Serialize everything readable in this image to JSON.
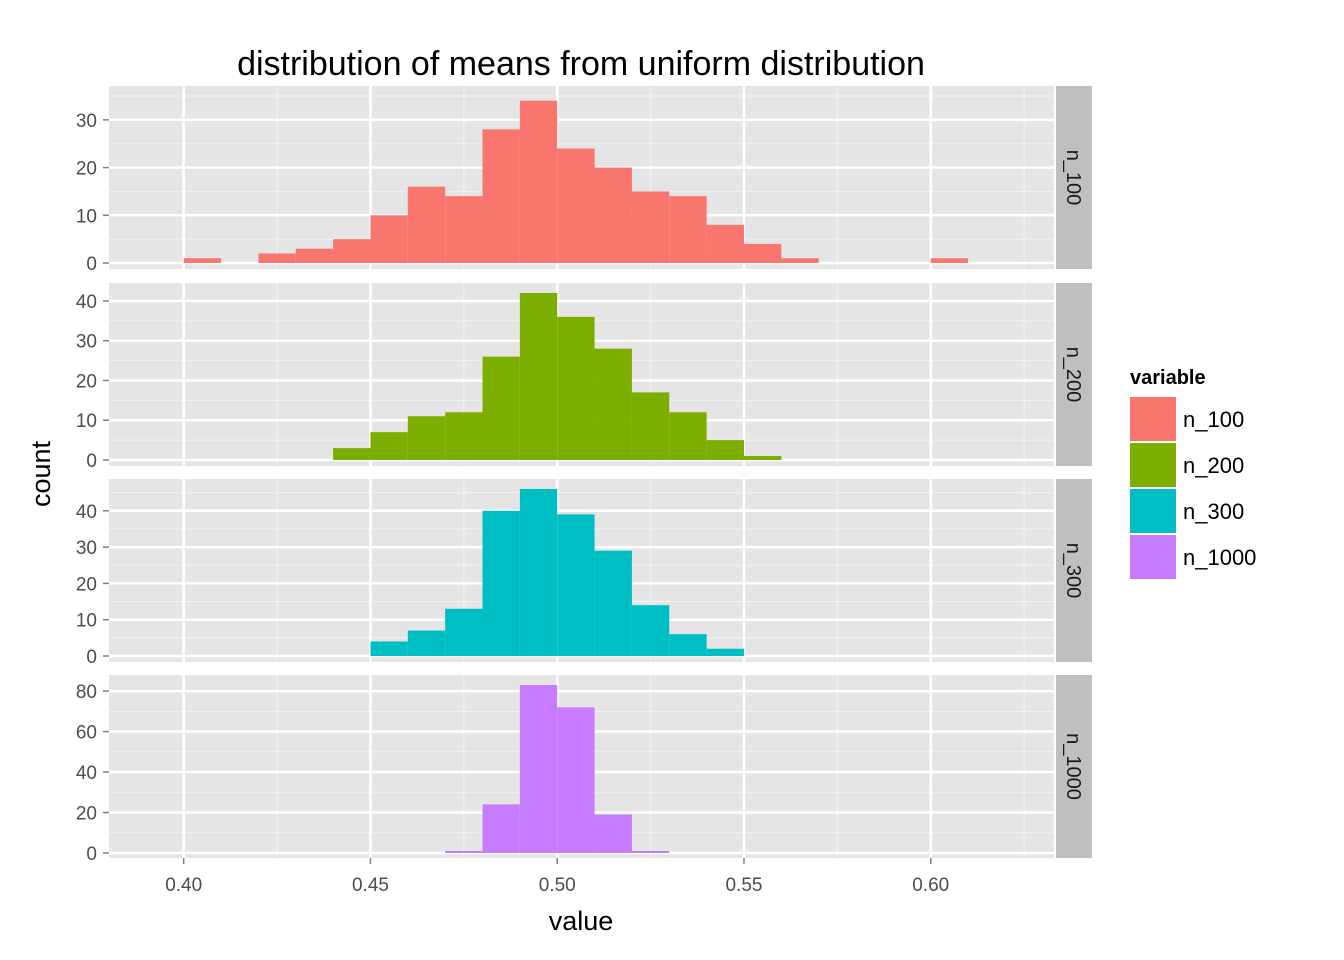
{
  "chart_data": {
    "type": "bar",
    "subtype": "histogram-faceted",
    "title": "distribution of means from uniform distribution",
    "xlabel": "value",
    "ylabel": "count",
    "xlim": [
      0.38,
      0.633
    ],
    "x_ticks": [
      "0.40",
      "0.45",
      "0.50",
      "0.55",
      "0.60"
    ],
    "x_tick_values": [
      0.4,
      0.45,
      0.5,
      0.55,
      0.6
    ],
    "bin_width": 0.01,
    "grid": true,
    "legend": {
      "title": "variable",
      "placement": "right",
      "items": [
        {
          "label": "n_100",
          "color": "#F8766D"
        },
        {
          "label": "n_200",
          "color": "#7CAE00"
        },
        {
          "label": "n_300",
          "color": "#00BFC4"
        },
        {
          "label": "n_1000",
          "color": "#C77CFF"
        }
      ]
    },
    "panels": [
      {
        "name": "n_100",
        "color": "#F8766D",
        "ylim": [
          0,
          35
        ],
        "y_ticks": [
          0,
          10,
          20,
          30
        ],
        "bins": [
          {
            "x0": 0.4,
            "count": 1
          },
          {
            "x0": 0.41,
            "count": 0
          },
          {
            "x0": 0.42,
            "count": 2
          },
          {
            "x0": 0.43,
            "count": 3
          },
          {
            "x0": 0.44,
            "count": 5
          },
          {
            "x0": 0.45,
            "count": 10
          },
          {
            "x0": 0.46,
            "count": 16
          },
          {
            "x0": 0.47,
            "count": 14
          },
          {
            "x0": 0.48,
            "count": 28
          },
          {
            "x0": 0.49,
            "count": 34
          },
          {
            "x0": 0.5,
            "count": 24
          },
          {
            "x0": 0.51,
            "count": 20
          },
          {
            "x0": 0.52,
            "count": 15
          },
          {
            "x0": 0.53,
            "count": 14
          },
          {
            "x0": 0.54,
            "count": 8
          },
          {
            "x0": 0.55,
            "count": 4
          },
          {
            "x0": 0.56,
            "count": 1
          },
          {
            "x0": 0.57,
            "count": 0
          },
          {
            "x0": 0.58,
            "count": 0
          },
          {
            "x0": 0.59,
            "count": 0
          },
          {
            "x0": 0.6,
            "count": 1
          }
        ]
      },
      {
        "name": "n_200",
        "color": "#7CAE00",
        "ylim": [
          0,
          42
        ],
        "y_ticks": [
          0,
          10,
          20,
          30,
          40
        ],
        "bins": [
          {
            "x0": 0.44,
            "count": 3
          },
          {
            "x0": 0.45,
            "count": 7
          },
          {
            "x0": 0.46,
            "count": 11
          },
          {
            "x0": 0.47,
            "count": 12
          },
          {
            "x0": 0.48,
            "count": 26
          },
          {
            "x0": 0.49,
            "count": 42
          },
          {
            "x0": 0.5,
            "count": 36
          },
          {
            "x0": 0.51,
            "count": 28
          },
          {
            "x0": 0.52,
            "count": 17
          },
          {
            "x0": 0.53,
            "count": 12
          },
          {
            "x0": 0.54,
            "count": 5
          },
          {
            "x0": 0.55,
            "count": 1
          }
        ]
      },
      {
        "name": "n_300",
        "color": "#00BFC4",
        "ylim": [
          0,
          46
        ],
        "y_ticks": [
          0,
          10,
          20,
          30,
          40
        ],
        "bins": [
          {
            "x0": 0.45,
            "count": 4
          },
          {
            "x0": 0.46,
            "count": 7
          },
          {
            "x0": 0.47,
            "count": 13
          },
          {
            "x0": 0.48,
            "count": 40
          },
          {
            "x0": 0.49,
            "count": 46
          },
          {
            "x0": 0.5,
            "count": 39
          },
          {
            "x0": 0.51,
            "count": 29
          },
          {
            "x0": 0.52,
            "count": 14
          },
          {
            "x0": 0.53,
            "count": 6
          },
          {
            "x0": 0.54,
            "count": 2
          }
        ]
      },
      {
        "name": "n_1000",
        "color": "#C77CFF",
        "ylim": [
          0,
          83
        ],
        "y_ticks": [
          0,
          20,
          40,
          60,
          80
        ],
        "bins": [
          {
            "x0": 0.47,
            "count": 1
          },
          {
            "x0": 0.48,
            "count": 24
          },
          {
            "x0": 0.49,
            "count": 83
          },
          {
            "x0": 0.5,
            "count": 72
          },
          {
            "x0": 0.51,
            "count": 19
          },
          {
            "x0": 0.52,
            "count": 1
          }
        ]
      }
    ]
  }
}
